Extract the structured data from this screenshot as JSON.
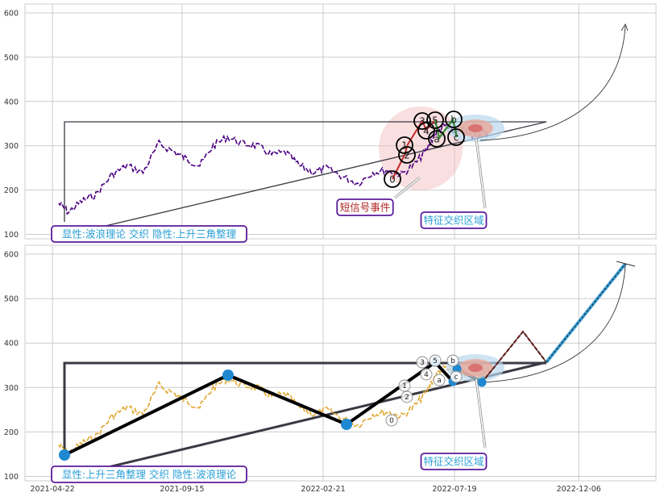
{
  "colors": {
    "grid": "#cccccc",
    "frame": "#cfcfcf",
    "price_top": "#4b0082",
    "price_bottom": "#e0a830",
    "wave_black": "#000000",
    "triangle": "#3a3a44",
    "callout_border": "#5b1a9a",
    "callout_text_top": "#2a9fd6",
    "signal_text": "#b22222",
    "zone_text": "#2a9fd6",
    "node_blue": "#1e88d0",
    "red_segment": "#c62828",
    "blue_segment": "#3aa0d8"
  },
  "chart_data": [
    {
      "type": "line",
      "panel": "top",
      "x_ticks": [],
      "y_ticks": [
        100,
        200,
        300,
        400,
        500,
        600
      ],
      "ylim": [
        90,
        620
      ],
      "xlim": [
        "2021-03-22",
        "2023-03-03"
      ],
      "grid": true,
      "series": [
        {
          "values_desc": "daily close",
          "x": [
            "2021-04-29",
            "2021-05-10",
            "2021-05-25",
            "2021-06-10",
            "2021-06-28",
            "2021-07-15",
            "2021-08-02",
            "2021-08-20",
            "2021-09-07",
            "2021-09-20",
            "2021-10-05",
            "2021-10-20",
            "2021-11-05",
            "2021-11-22",
            "2021-12-08",
            "2021-12-25",
            "2022-01-10",
            "2022-01-25",
            "2022-02-10",
            "2022-02-25",
            "2022-03-15",
            "2022-04-01",
            "2022-04-18",
            "2022-05-05",
            "2022-05-20",
            "2022-06-05",
            "2022-06-17",
            "2022-06-28",
            "2022-07-08",
            "2022-07-18",
            "2022-07-28",
            "2022-08-08",
            "2022-08-18",
            "2022-08-25"
          ],
          "y": [
            170,
            150,
            175,
            190,
            235,
            255,
            240,
            305,
            285,
            270,
            255,
            300,
            320,
            305,
            300,
            280,
            285,
            255,
            240,
            250,
            230,
            215,
            240,
            245,
            235,
            260,
            290,
            330,
            345,
            330,
            335,
            320,
            330,
            330
          ]
        }
      ],
      "wave_labels": [
        "0",
        "1",
        "2",
        "3",
        "4",
        "5",
        "a",
        "b",
        "c"
      ],
      "annotations": [
        {
          "text": "显性:波浪理论 交织 隐性:上升三角整理"
        },
        {
          "text": "短信号事件"
        },
        {
          "text": "特征交织区域"
        }
      ]
    },
    {
      "type": "line",
      "panel": "bottom",
      "x_ticks": [
        "2021-04-22",
        "2021-09-15",
        "2022-02-21",
        "2022-07-19",
        "2022-12-06"
      ],
      "y_ticks": [
        100,
        200,
        300,
        400,
        500,
        600
      ],
      "ylim": [
        90,
        620
      ],
      "xlim": [
        "2021-03-22",
        "2023-03-03"
      ],
      "grid": true,
      "series": [
        {
          "x": [
            "2021-04-29",
            "2021-05-10",
            "2021-05-25",
            "2021-06-10",
            "2021-06-28",
            "2021-07-15",
            "2021-08-02",
            "2021-08-20",
            "2021-09-07",
            "2021-09-20",
            "2021-10-05",
            "2021-10-20",
            "2021-11-05",
            "2021-11-22",
            "2021-12-08",
            "2021-12-25",
            "2022-01-10",
            "2022-01-25",
            "2022-02-10",
            "2022-02-25",
            "2022-03-15",
            "2022-04-01",
            "2022-04-18",
            "2022-05-05",
            "2022-05-20",
            "2022-06-05",
            "2022-06-17",
            "2022-06-28",
            "2022-07-08",
            "2022-07-18",
            "2022-07-28",
            "2022-08-08",
            "2022-08-18",
            "2022-08-25"
          ],
          "y": [
            170,
            150,
            175,
            190,
            235,
            255,
            240,
            305,
            285,
            270,
            255,
            300,
            320,
            305,
            300,
            280,
            285,
            255,
            240,
            250,
            230,
            215,
            240,
            245,
            235,
            260,
            290,
            330,
            345,
            330,
            335,
            320,
            330,
            330
          ]
        }
      ],
      "wave_labels": [
        "0",
        "1",
        "2",
        "3",
        "4",
        "5",
        "a",
        "b",
        "c"
      ],
      "annotations": [
        {
          "text": "显性:上升三角整理 交织 隐性:波浪理论"
        },
        {
          "text": "特征交织区域"
        }
      ]
    }
  ]
}
